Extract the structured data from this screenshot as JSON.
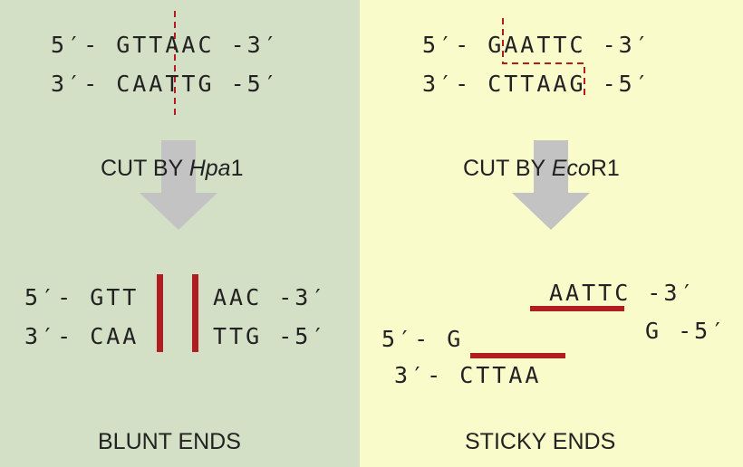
{
  "left": {
    "top_strand_1": "5′- GTTAAC -3′",
    "top_strand_2": "3′- CAATTG -5′",
    "cut_prefix": "CUT BY ",
    "enzyme_italic": "Hpa",
    "enzyme_suffix": "1",
    "frag_left_1": "5′- GTT",
    "frag_left_2": "3′- CAA",
    "frag_right_1": "AAC -3′",
    "frag_right_2": "TTG -5′",
    "end_label": "BLUNT ENDS"
  },
  "right": {
    "top_strand_1": "5′- GAATTC -3′",
    "top_strand_2": "3′- CTTAAG -5′",
    "cut_prefix": "CUT BY ",
    "enzyme_italic": "Eco",
    "enzyme_suffix": "R1",
    "frag_right_1": "AATTC -3′",
    "frag_right_2": "G -5′",
    "frag_left_1": "5′- G",
    "frag_left_2": "3′- CTTAA",
    "end_label": "STICKY ENDS"
  },
  "colors": {
    "left_bg": "#d3e0c6",
    "right_bg": "#fafbcb",
    "cut_line": "#b01e23",
    "arrow": "#c3c3c3"
  }
}
